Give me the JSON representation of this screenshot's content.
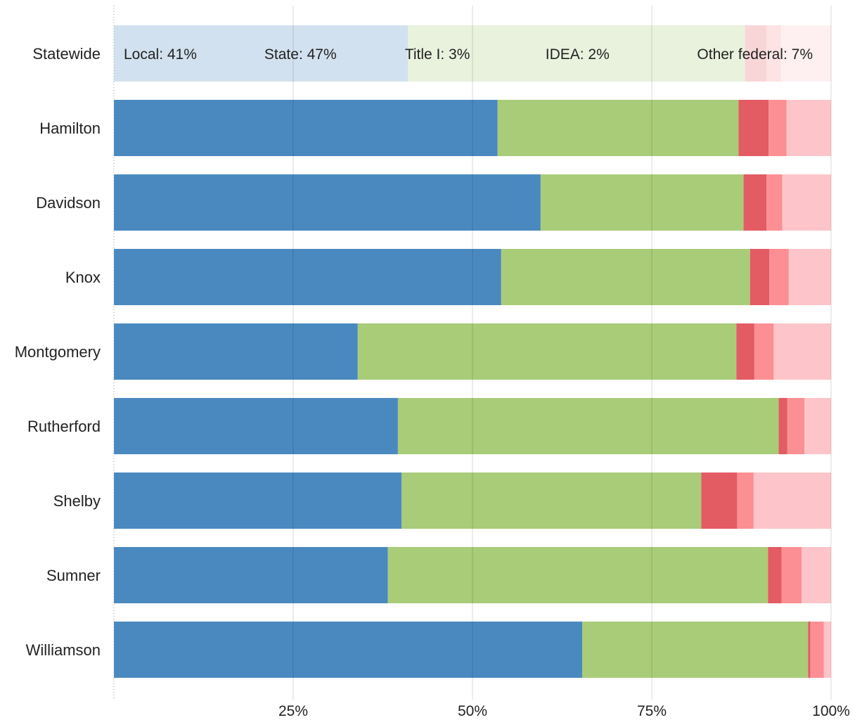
{
  "chart_data": {
    "type": "bar",
    "orientation": "horizontal",
    "stacked": true,
    "normalized": true,
    "xlim": [
      0,
      100
    ],
    "x_ticks": [
      25,
      50,
      75,
      100
    ],
    "x_tick_labels": [
      "25%",
      "50%",
      "75%",
      "100%"
    ],
    "grid": true,
    "categories": [
      "Statewide",
      "Hamilton",
      "Davidson",
      "Knox",
      "Montgomery",
      "Rutherford",
      "Shelby",
      "Sumner",
      "Williamson"
    ],
    "series": [
      {
        "name": "Local",
        "color": "#4a89c0",
        "values": [
          41,
          53.5,
          59.5,
          54,
          34,
          39.6,
          40.1,
          38.2,
          65.3
        ]
      },
      {
        "name": "State",
        "color": "#a9cc79",
        "values": [
          47,
          33.6,
          28.3,
          34.7,
          52.8,
          53.1,
          41.8,
          53.0,
          31.5
        ]
      },
      {
        "name": "Title I",
        "color": "#e35b63",
        "values": [
          3,
          4.2,
          3.2,
          2.7,
          2.5,
          1.2,
          5.0,
          1.9,
          0.3
        ]
      },
      {
        "name": "IDEA",
        "color": "#fc8f94",
        "values": [
          2,
          2.5,
          2.2,
          2.7,
          2.7,
          2.4,
          2.3,
          2.8,
          1.9
        ]
      },
      {
        "name": "Other federal",
        "color": "#fdc5c9",
        "values": [
          7,
          6.2,
          6.8,
          5.9,
          8.0,
          3.7,
          10.8,
          4.1,
          1.0
        ]
      }
    ],
    "annotations": {
      "row": "Statewide",
      "labels": [
        "Local: 41%",
        "State: 47%",
        "Title I: 3%",
        "IDEA: 2%",
        "Other federal: 7%"
      ]
    }
  }
}
